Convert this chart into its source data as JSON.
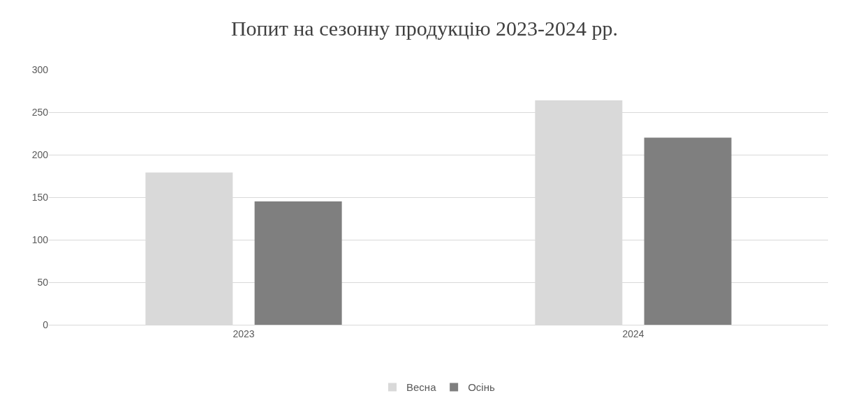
{
  "chart_data": {
    "type": "bar",
    "title": "Попит на сезонну продукцію 2023-2024 рр.",
    "categories": [
      "2023",
      "2024"
    ],
    "series": [
      {
        "name": "Весна",
        "color": "#d9d9d9",
        "values": [
          179,
          264
        ]
      },
      {
        "name": "Осінь",
        "color": "#7f7f7f",
        "values": [
          145,
          220
        ]
      }
    ],
    "ylim": [
      0,
      300
    ],
    "yticks": [
      0,
      50,
      100,
      150,
      200,
      250,
      300
    ],
    "grid": "y",
    "legend": "bottom"
  }
}
